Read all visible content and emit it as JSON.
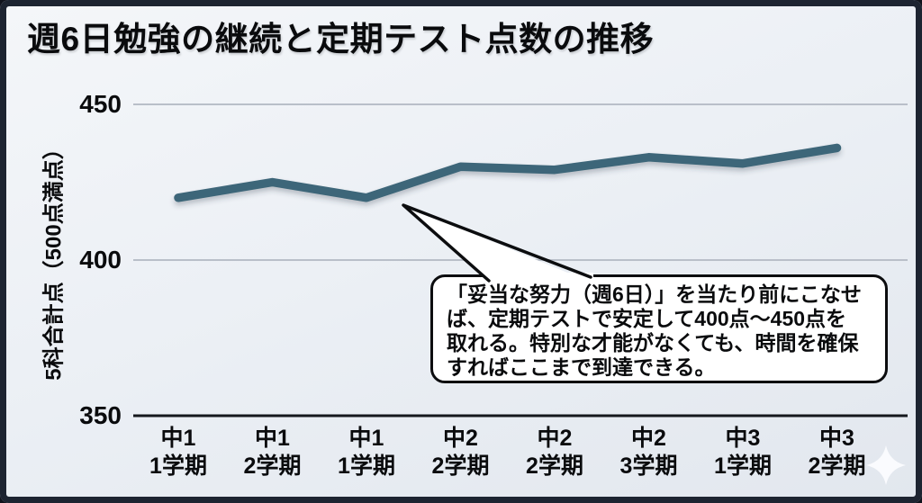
{
  "header": {
    "title": "週6日勉強の継続と定期テスト点数の推移"
  },
  "chart_data": {
    "type": "line",
    "title": "週6日勉強の継続と定期テスト点数の推移",
    "categories": [
      "中1 1学期",
      "中1 2学期",
      "中1 1学期",
      "中2 2学期",
      "中2 2学期",
      "中2 3学期",
      "中3 1学期",
      "中3 2学期"
    ],
    "values": [
      420,
      425,
      420,
      430,
      429,
      433,
      431,
      436
    ],
    "xlabel": "",
    "ylabel": "5科合計点（500点満点）",
    "yticks": [
      450,
      400,
      350
    ],
    "ylim": [
      350,
      455
    ],
    "grid": true,
    "legend": "none",
    "line_color": "#3e6679"
  },
  "annotation": {
    "lines": [
      "「妥当な努力（週6日）」を当たり前にこなせ",
      "ば、定期テストで安定して400点〜450点を",
      "取れる。特別な才能がなくても、時間を確保",
      "すればここまで到達できる。"
    ],
    "full_text": "「妥当な努力（週6日）」を当たり前にこなせば、定期テストで安定して400点〜450点を取れる。特別な才能がなくても、時間を確保すればここまで到達できる。"
  },
  "colors": {
    "frame_border": "#1d2431",
    "background_top": "#f4f6f9",
    "background_bottom": "#e2e7ee",
    "gridline": "#b9bfc9",
    "axis_line": "#15181d",
    "line": "#3e6679",
    "bubble_border": "#0c0d0f",
    "bubble_fill": "#ffffff",
    "text": "#0a0b0d",
    "sparkle": "#fbfcfe"
  },
  "decor": {
    "sparkle": "four-pointed-star"
  }
}
